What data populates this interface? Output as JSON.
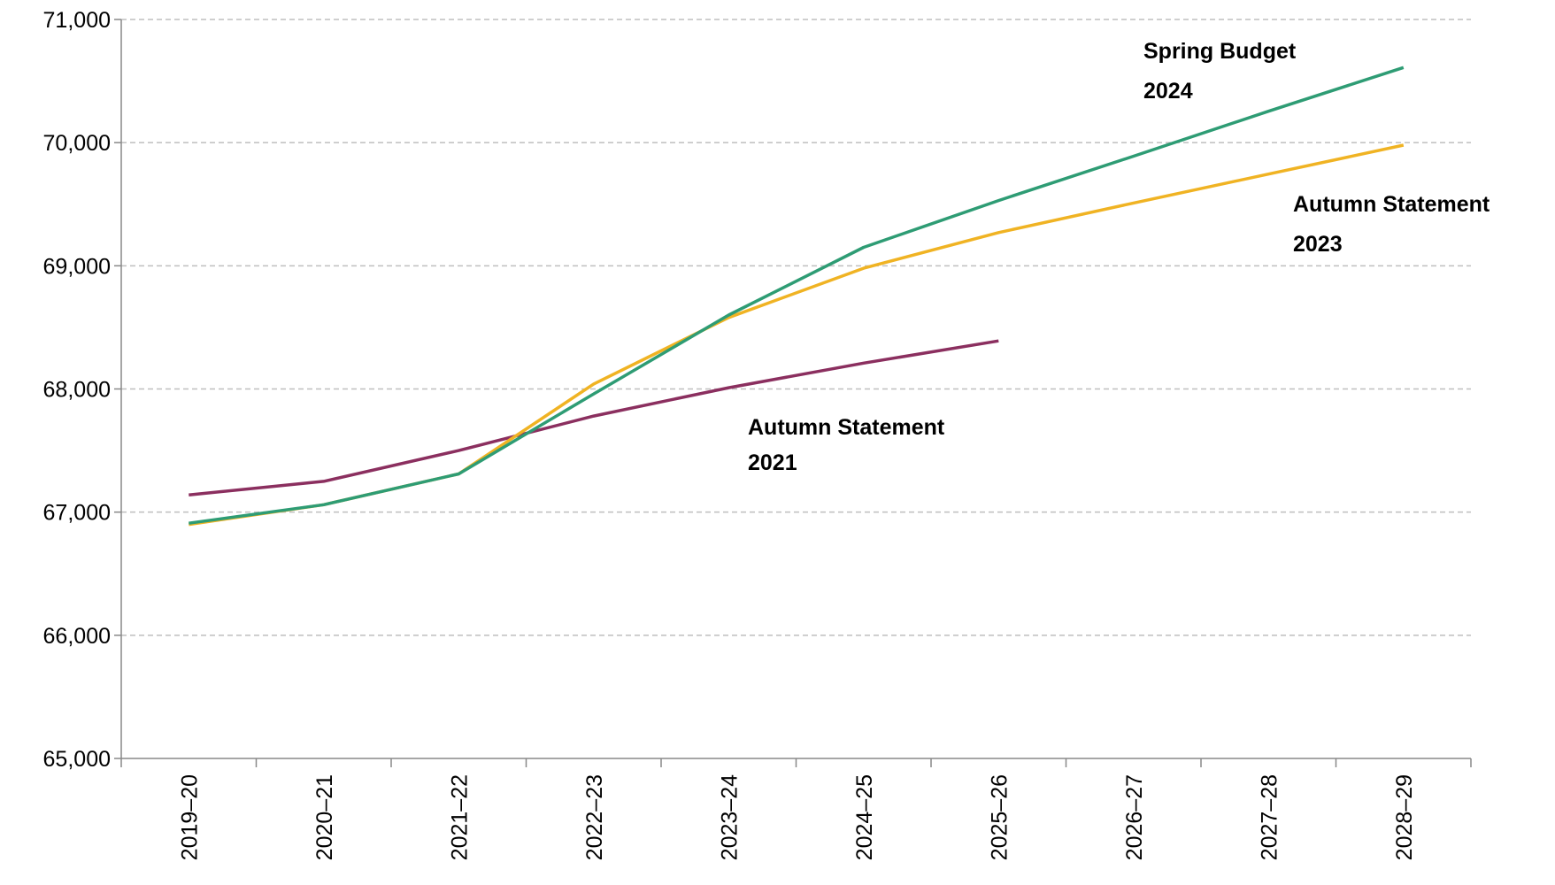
{
  "chart_data": {
    "type": "line",
    "categories": [
      "2019–20",
      "2020–21",
      "2021–22",
      "2022–23",
      "2023–24",
      "2024–25",
      "2025–26",
      "2026–27",
      "2027–28",
      "2028–29"
    ],
    "series": [
      {
        "name": "Autumn Statement 2021",
        "color": "#8b2f5f",
        "values": [
          67140,
          67250,
          67500,
          67780,
          68010,
          68210,
          68390,
          null,
          null,
          null
        ]
      },
      {
        "name": "Autumn Statement 2023",
        "color": "#f0b323",
        "values": [
          66900,
          67060,
          67310,
          68040,
          68580,
          68980,
          69270,
          69510,
          69745,
          69980
        ]
      },
      {
        "name": "Spring Budget 2024",
        "color": "#2e9c74",
        "values": [
          66910,
          67060,
          67310,
          67960,
          68600,
          69150,
          69530,
          69890,
          70255,
          70610
        ]
      }
    ],
    "ylim": [
      65000,
      71000
    ],
    "yticks": [
      {
        "value": 65000,
        "label": "65,000"
      },
      {
        "value": 66000,
        "label": "66,000"
      },
      {
        "value": 67000,
        "label": "67,000"
      },
      {
        "value": 68000,
        "label": "68,000"
      },
      {
        "value": 69000,
        "label": "69,000"
      },
      {
        "value": 70000,
        "label": "70,000"
      },
      {
        "value": 71000,
        "label": "71,000"
      }
    ],
    "grid": true
  }
}
